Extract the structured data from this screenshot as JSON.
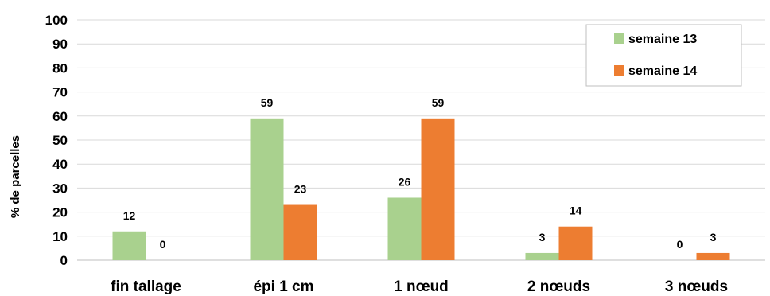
{
  "chart_data": {
    "type": "bar",
    "categories": [
      "fin tallage",
      "épi 1 cm",
      "1 nœud",
      "2 nœuds",
      "3 nœuds"
    ],
    "series": [
      {
        "name": "semaine 13",
        "color": "#a9d18e",
        "values": [
          12,
          59,
          26,
          3,
          0
        ]
      },
      {
        "name": "semaine 14",
        "color": "#ed7d31",
        "values": [
          0,
          23,
          59,
          14,
          3
        ]
      }
    ],
    "data_labels": [
      [
        "12",
        "59",
        "26",
        "3",
        "0"
      ],
      [
        "0",
        "23",
        "59",
        "14",
        "3"
      ]
    ],
    "ylabel": "% de parcelles",
    "xlabel": "",
    "ylim": [
      0,
      100
    ],
    "yticks": [
      0,
      10,
      20,
      30,
      40,
      50,
      60,
      70,
      80,
      90,
      100
    ],
    "grid": true,
    "legend": "top-right"
  }
}
